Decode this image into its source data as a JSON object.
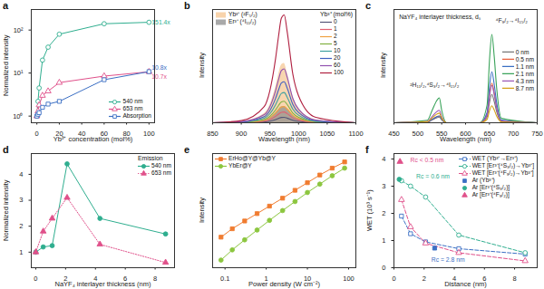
{
  "chart_data": [
    {
      "type": "line",
      "title": "a",
      "x_label": "Yb³⁺ concentration (mol%)",
      "y_label": "Normalized intensity",
      "x": [
        0,
        1,
        2,
        5,
        10,
        20,
        60,
        100
      ],
      "log": "y",
      "xlim": [
        -5,
        105
      ],
      "ylim": [
        0.7,
        300
      ],
      "xticks": [
        0,
        20,
        40,
        60,
        80,
        100
      ],
      "yticks": [
        {
          "value": 1,
          "label": "10⁰"
        },
        {
          "value": 10,
          "label": "10¹"
        },
        {
          "value": 100,
          "label": "10²"
        }
      ],
      "legend": "bottom-right",
      "series": [
        {
          "name": "540 nm",
          "color": "#2fae8f",
          "marker": "circle-open",
          "line_style": "solid",
          "values": [
            1,
            2.2,
            4.5,
            20,
            40,
            80,
            140,
            151.4
          ]
        },
        {
          "name": "653 nm",
          "color": "#e0508a",
          "marker": "triangle-open",
          "line_style": "solid",
          "values": [
            1,
            1.3,
            1.8,
            3,
            3.8,
            6,
            8.5,
            10.7
          ]
        },
        {
          "name": "Absorption",
          "color": "#3b6fc4",
          "marker": "square-open",
          "line_style": "solid",
          "values": [
            1,
            1.1,
            1.2,
            1.6,
            1.9,
            2.2,
            7,
            10.8
          ]
        }
      ],
      "annotations": [
        {
          "text": "151.4x",
          "x": 100,
          "y": 151.4,
          "color": "#2fae8f"
        },
        {
          "text": "10.8x",
          "x": 100,
          "y": 13,
          "color": "#3b6fc4"
        },
        {
          "text": "10.7x",
          "x": 100,
          "y": 8,
          "color": "#e0508a"
        }
      ]
    },
    {
      "type": "line",
      "title": "b",
      "x_label": "Wavelength (nm)",
      "y_label": "Intensity",
      "x": [
        850,
        900,
        940,
        950,
        960,
        965,
        970,
        975,
        980,
        990,
        1000,
        1030,
        1100
      ],
      "xlim": [
        850,
        1100
      ],
      "ylim": [
        0,
        1.05
      ],
      "xticks": [
        850,
        900,
        950,
        1000,
        1050,
        1100
      ],
      "tick_labels": "x",
      "legend": "top-right",
      "legend_title": "Yb³⁺ (mol%)",
      "series": [
        {
          "name": "Yb³⁺ (²F₅/₂)",
          "type": "area",
          "color": "#f5c48f",
          "values": [
            0,
            0.011,
            0.083,
            0.165,
            0.33,
            0.44,
            0.534,
            0.55,
            0.468,
            0.248,
            0.138,
            0.028,
            0
          ]
        },
        {
          "name": "Er³⁺ (⁴I₁₁/₂)",
          "type": "area",
          "color": "#8c8c8c",
          "values": [
            0,
            0.003,
            0.023,
            0.045,
            0.09,
            0.12,
            0.146,
            0.15,
            0.128,
            0.068,
            0.038,
            0.008,
            0
          ]
        },
        {
          "name": "0",
          "color": "#555577",
          "values": [
            0,
            0.001,
            0.008,
            0.015,
            0.03,
            0.04,
            0.049,
            0.05,
            0.043,
            0.023,
            0.013,
            0.003,
            0
          ]
        },
        {
          "name": "1",
          "color": "#e06070",
          "values": [
            0,
            0.002,
            0.015,
            0.03,
            0.06,
            0.08,
            0.097,
            0.1,
            0.085,
            0.045,
            0.025,
            0.005,
            0
          ]
        },
        {
          "name": "2",
          "color": "#f0a040",
          "values": [
            0,
            0.003,
            0.023,
            0.045,
            0.09,
            0.12,
            0.146,
            0.15,
            0.128,
            0.068,
            0.038,
            0.008,
            0
          ]
        },
        {
          "name": "5",
          "color": "#80b040",
          "values": [
            0,
            0.004,
            0.03,
            0.06,
            0.12,
            0.16,
            0.194,
            0.2,
            0.17,
            0.09,
            0.05,
            0.01,
            0
          ]
        },
        {
          "name": "10",
          "color": "#40a0a0",
          "values": [
            0,
            0.006,
            0.042,
            0.084,
            0.168,
            0.224,
            0.272,
            0.28,
            0.238,
            0.126,
            0.07,
            0.014,
            0
          ]
        },
        {
          "name": "20",
          "color": "#4060c0",
          "values": [
            0,
            0.008,
            0.057,
            0.114,
            0.228,
            0.304,
            0.369,
            0.38,
            0.323,
            0.171,
            0.095,
            0.019,
            0
          ]
        },
        {
          "name": "60",
          "color": "#9050b0",
          "values": [
            0,
            0.01,
            0.075,
            0.15,
            0.3,
            0.4,
            0.485,
            0.5,
            0.425,
            0.225,
            0.125,
            0.025,
            0
          ]
        },
        {
          "name": "100",
          "color": "#b02040",
          "values": [
            0,
            0.02,
            0.15,
            0.3,
            0.6,
            0.8,
            0.97,
            1.0,
            0.85,
            0.45,
            0.25,
            0.05,
            0
          ]
        }
      ]
    },
    {
      "type": "line",
      "title": "c",
      "x_label": "Wavelength (nm)",
      "y_label": "Intensity",
      "x": [
        450,
        520,
        530,
        540,
        545,
        550,
        560,
        630,
        645,
        650,
        655,
        660,
        665,
        675,
        750
      ],
      "xlim": [
        450,
        750
      ],
      "ylim": [
        0,
        1.0
      ],
      "xticks": [
        450,
        500,
        550,
        600,
        650,
        700,
        750
      ],
      "tick_labels": "x",
      "legend": "right",
      "series": [
        {
          "name": "0 nm",
          "color": "#777777",
          "values": [
            0,
            0.005,
            0.025,
            0.045,
            0.05,
            0.025,
            0,
            0,
            0.05,
            0.175,
            0.25,
            0.188,
            0.1,
            0.013,
            0
          ]
        },
        {
          "name": "0.5 nm",
          "color": "#e8603c",
          "values": [
            0,
            0.006,
            0.03,
            0.054,
            0.06,
            0.03,
            0,
            0,
            0.07,
            0.245,
            0.35,
            0.263,
            0.14,
            0.018,
            0
          ]
        },
        {
          "name": "1.1 nm",
          "color": "#3b6fc4",
          "values": [
            0,
            0.006,
            0.03,
            0.054,
            0.06,
            0.03,
            0,
            0,
            0.09,
            0.315,
            0.45,
            0.338,
            0.18,
            0.023,
            0
          ]
        },
        {
          "name": "2.1 nm",
          "color": "#3aa35a",
          "values": [
            0,
            0.022,
            0.11,
            0.198,
            0.22,
            0.11,
            0,
            0,
            0.156,
            0.546,
            0.78,
            0.585,
            0.312,
            0.039,
            0
          ]
        },
        {
          "name": "4.3 nm",
          "color": "#9b59b6",
          "values": [
            0,
            0.011,
            0.055,
            0.099,
            0.11,
            0.055,
            0,
            0,
            0.066,
            0.231,
            0.33,
            0.248,
            0.132,
            0.017,
            0
          ]
        },
        {
          "name": "8.7 nm",
          "color": "#d4a017",
          "values": [
            0,
            0.009,
            0.043,
            0.077,
            0.085,
            0.043,
            0,
            0,
            0.03,
            0.105,
            0.15,
            0.113,
            0.06,
            0.008,
            0
          ]
        }
      ],
      "annotations": [
        {
          "text": "NaYF₄ interlayer thickness, dₛ",
          "x": 455,
          "y": 0.93
        },
        {
          "text": "²H₁₁/₂,⁴S₃/₂→⁴I₁₅/₂",
          "x": 478,
          "y": 0.33
        },
        {
          "text": "⁴F₉/₂→⁴I₁₅/₂",
          "x": 657,
          "y": 0.9
        }
      ]
    },
    {
      "type": "line",
      "title": "d",
      "x_label": "NaYF₄ interlayer thickness (nm)",
      "y_label": "Normalized intensity",
      "x": [
        0,
        0.5,
        1.1,
        2.1,
        4.3,
        8.7
      ],
      "xlim": [
        -0.3,
        9.3
      ],
      "ylim": [
        0.4,
        4.8
      ],
      "xticks": [
        0,
        2,
        4,
        6,
        8
      ],
      "yticks": [
        1,
        2,
        3,
        4
      ],
      "legend": "top-right",
      "legend_title": "Emission",
      "series": [
        {
          "name": "540 nm",
          "color": "#2fae8f",
          "marker": "circle",
          "line_style": "solid",
          "values": [
            1,
            1.2,
            1.25,
            4.4,
            2.3,
            1.7
          ]
        },
        {
          "name": "653 nm",
          "color": "#e0508a",
          "marker": "triangle",
          "line_style": "dotted",
          "values": [
            1,
            1.8,
            2.3,
            3.1,
            1.3,
            0.6
          ]
        }
      ]
    },
    {
      "type": "line",
      "title": "e",
      "x_label": "Power density (W cm⁻²)",
      "y_label": "Intensity",
      "x": [
        0.08,
        0.15,
        0.3,
        0.6,
        1.2,
        2.5,
        5,
        10,
        20,
        40,
        80
      ],
      "log": true,
      "xlim": [
        0.05,
        150
      ],
      "ylim": [
        0.8,
        10000
      ],
      "xticks": [
        0.1,
        1,
        10,
        100
      ],
      "tick_labels": "x",
      "legend": "top-left",
      "series": [
        {
          "name": "ErHo@Y@Yb@Y",
          "color": "#f07c30",
          "marker": "square",
          "line_style": "solid",
          "values": [
            10,
            20,
            38,
            70,
            130,
            250,
            480,
            900,
            1700,
            3000,
            5000
          ]
        },
        {
          "name": "YbEr@Y",
          "color": "#8cc63f",
          "marker": "circle",
          "line_style": "solid",
          "values": [
            1.5,
            3.5,
            8,
            18,
            40,
            90,
            190,
            400,
            800,
            1600,
            3000
          ]
        }
      ]
    },
    {
      "type": "line",
      "title": "f",
      "x_label": "Distance (nm)",
      "y_label": "WET (10³ s⁻¹)",
      "xlim": [
        0,
        9.5
      ],
      "ylim": [
        0,
        4.2
      ],
      "xticks": [
        0,
        2,
        4,
        6,
        8
      ],
      "yticks": [
        0,
        1,
        2,
        3,
        4
      ],
      "legend": "top-right",
      "series": [
        {
          "name": "WET (Yb³⁺→Er³⁺)",
          "color": "#3b6fc4",
          "marker": "square-open",
          "line_style": "dashed",
          "x": [
            0.5,
            1.1,
            2.1,
            4.3,
            8.7
          ],
          "values": [
            1.9,
            1.25,
            0.95,
            0.7,
            0.5
          ]
        },
        {
          "name": "WET [Er³⁺(⁴S₃/₂)→Yb³⁺]",
          "color": "#2fae8f",
          "marker": "circle-open",
          "line_style": "dashed",
          "x": [
            0.5,
            1.1,
            2.1,
            4.3,
            8.7
          ],
          "values": [
            3.2,
            3.0,
            2.6,
            1.2,
            0.55
          ]
        },
        {
          "name": "WET [Er³⁺(⁴F₉/₂)→Yb³⁺]",
          "color": "#e0508a",
          "marker": "triangle-open",
          "line_style": "dashed",
          "x": [
            0.5,
            1.1,
            2.1,
            4.3,
            8.7
          ],
          "values": [
            2.5,
            1.5,
            0.9,
            0.55,
            0.25
          ]
        },
        {
          "name": "Ar (Yb³⁺)",
          "type": "scatter",
          "color": "#3b6fc4",
          "marker": "square",
          "x": [
            2.7
          ],
          "values": [
            0.72
          ]
        },
        {
          "name": "Ar [Er³⁺(⁴S₃/₂)]",
          "type": "scatter",
          "color": "#2fae8f",
          "marker": "circle",
          "x": [
            0.35
          ],
          "values": [
            3.25
          ]
        },
        {
          "name": "Ar [Er³⁺(⁴F₉/₂)]",
          "type": "scatter",
          "color": "#e0508a",
          "marker": "triangle",
          "x": [
            0.4
          ],
          "values": [
            3.9
          ]
        }
      ],
      "annotations": [
        {
          "text": "Rc < 0.5 nm",
          "x": 0.9,
          "y": 3.95,
          "color": "#e0508a"
        },
        {
          "text": "Rc = 0.6 nm",
          "x": 1.3,
          "y": 3.35,
          "color": "#2fae8f"
        },
        {
          "text": "Rc = 2.8 nm",
          "x": 2.3,
          "y": 0.3,
          "color": "#3b6fc4"
        }
      ]
    }
  ]
}
